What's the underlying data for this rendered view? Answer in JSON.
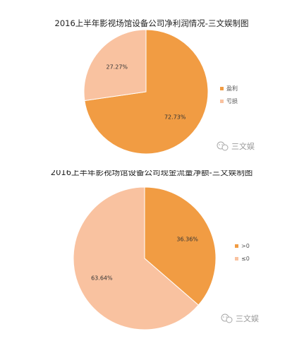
{
  "watermark": {
    "icon": "wechat-icon",
    "text": "三文娱"
  },
  "chart_data": [
    {
      "type": "pie",
      "title": "2016上半年影视场馆设备公司净利润情况-三文娱制图",
      "legend_position": "right",
      "slices": [
        {
          "label": "盈利",
          "value": 72.73,
          "display": "72.73%",
          "color": "#f19c43"
        },
        {
          "label": "亏损",
          "value": 27.27,
          "display": "27.27%",
          "color": "#f9c2a0"
        }
      ]
    },
    {
      "type": "pie",
      "title": "2016上半年影视场馆设备公司现金流量净额-三文娱制图",
      "legend_position": "right",
      "slices": [
        {
          "label": ">0",
          "value": 36.36,
          "display": "36.36%",
          "color": "#f19c43"
        },
        {
          "label": "≤0",
          "value": 63.64,
          "display": "63.64%",
          "color": "#f9c2a0"
        }
      ]
    }
  ]
}
